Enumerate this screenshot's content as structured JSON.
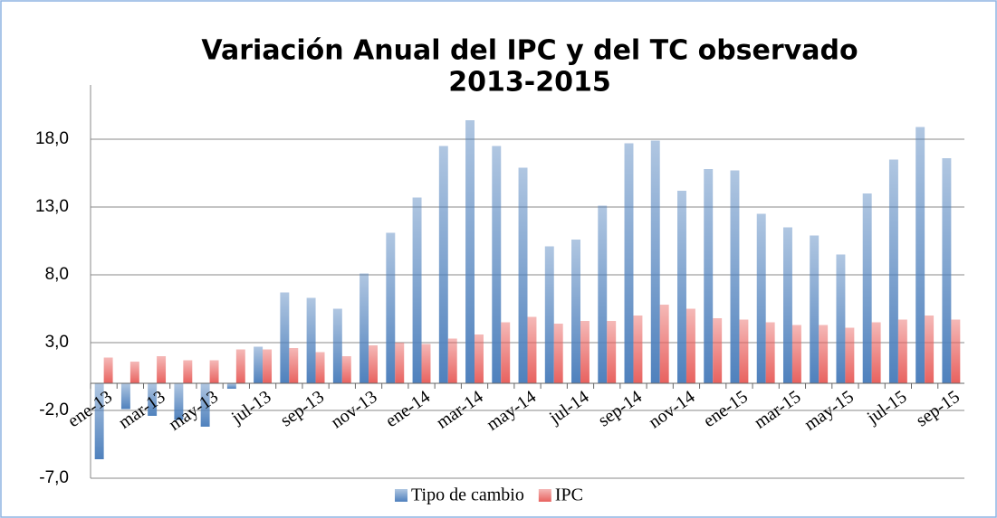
{
  "chart_data": {
    "type": "bar",
    "title": [
      "Variación Anual del IPC y del TC observado",
      "2013-2015"
    ],
    "categories": [
      "ene-13",
      null,
      "mar-13",
      null,
      "may-13",
      null,
      "jul-13",
      null,
      "sep-13",
      null,
      "nov-13",
      null,
      "ene-14",
      null,
      "mar-14",
      null,
      "may-14",
      null,
      "jul-14",
      null,
      "sep-14",
      null,
      "nov-14",
      null,
      "ene-15",
      null,
      "mar-15",
      null,
      "may-15",
      null,
      "jul-15",
      null,
      "sep-15"
    ],
    "series": [
      {
        "name": "Tipo de cambio",
        "color": "#4f81bd",
        "values": [
          -5.6,
          -1.9,
          -2.4,
          -2.7,
          -3.2,
          -0.4,
          2.7,
          6.7,
          6.3,
          5.5,
          8.1,
          11.1,
          13.7,
          17.5,
          19.4,
          17.5,
          15.9,
          10.1,
          10.6,
          13.1,
          17.7,
          17.9,
          14.2,
          15.8,
          15.7,
          12.5,
          11.5,
          10.9,
          9.5,
          14.0,
          16.5,
          18.9,
          16.6
        ]
      },
      {
        "name": "IPC",
        "color": "#e8625f",
        "values": [
          1.9,
          1.6,
          2.0,
          1.7,
          1.7,
          2.5,
          2.5,
          2.6,
          2.3,
          2.0,
          2.8,
          3.0,
          2.9,
          3.3,
          3.6,
          4.5,
          4.9,
          4.4,
          4.6,
          4.6,
          5.0,
          5.8,
          5.5,
          4.8,
          4.7,
          4.5,
          4.3,
          4.3,
          4.1,
          4.5,
          4.7,
          5.0,
          4.7
        ]
      }
    ],
    "ylim": [
      -7,
      22
    ],
    "yticks": [
      {
        "value": -7,
        "label": "-7,0"
      },
      {
        "value": -2,
        "label": "-2,0"
      },
      {
        "value": 3,
        "label": "3,0"
      },
      {
        "value": 8,
        "label": "8,0"
      },
      {
        "value": 13,
        "label": "13,0"
      },
      {
        "value": 18,
        "label": "18,0"
      }
    ],
    "grid": true,
    "legend": "bottom"
  }
}
